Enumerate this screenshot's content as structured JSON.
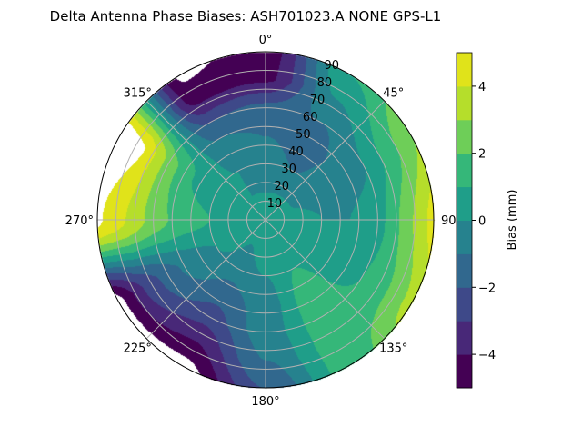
{
  "chart_data": {
    "type": "heatmap",
    "projection": "polar",
    "title": "Delta Antenna Phase Biases: ASH701023.A     NONE GPS-L1",
    "theta_zero": "top",
    "theta_direction": "clockwise",
    "theta_ticks": [
      "0°",
      "45°",
      "90°",
      "135°",
      "180°",
      "225°",
      "270°",
      "315°"
    ],
    "r_ticks": [
      "10",
      "20",
      "30",
      "40",
      "50",
      "60",
      "70",
      "80",
      "90"
    ],
    "r_range": [
      0,
      90
    ],
    "grid": true,
    "colormap": "viridis",
    "levels": [
      -5,
      -4,
      -3,
      -2,
      -1,
      0,
      1,
      2,
      3,
      4,
      5
    ],
    "level_colors": [
      "#440154",
      "#482878",
      "#3e4989",
      "#31688e",
      "#26828e",
      "#1f9e89",
      "#35b779",
      "#6ece58",
      "#b5de2b",
      "#e0e31a"
    ],
    "out_of_range_color": "#ffffff",
    "colorbar": {
      "label": "Bias (mm)",
      "ticks": [
        "−4",
        "−2",
        "0",
        "2",
        "4"
      ],
      "tick_values": [
        -4,
        -2,
        0,
        2,
        4
      ],
      "range": [
        -5,
        5
      ]
    },
    "grid_azimuths": [
      0,
      30,
      60,
      90,
      120,
      150,
      180,
      210,
      240,
      270,
      300,
      330
    ],
    "grid_zeniths": [
      0,
      15,
      30,
      45,
      60,
      75,
      90
    ],
    "values": [
      [
        0.5,
        0,
        -0.5,
        -1,
        -1.5,
        -4.2,
        -4.5
      ],
      [
        0.5,
        0,
        -1,
        -1.5,
        -1,
        0,
        1
      ],
      [
        0.5,
        0,
        -0.5,
        -0.5,
        0,
        1.5,
        3
      ],
      [
        0.5,
        0.5,
        0,
        0,
        0.5,
        2.5,
        4.5
      ],
      [
        0.5,
        0.5,
        0.5,
        0.5,
        1,
        2,
        3.5
      ],
      [
        0.5,
        0.5,
        1,
        1.5,
        1.5,
        1.5,
        1.5
      ],
      [
        0.5,
        0.5,
        0,
        -0.5,
        -0.5,
        -1,
        -2
      ],
      [
        0.5,
        0,
        -0.5,
        -1.5,
        -2.5,
        -4,
        -5.5
      ],
      [
        0.5,
        0.5,
        0,
        -0.5,
        -1.5,
        -3,
        -5.5
      ],
      [
        0.5,
        0.5,
        1,
        1.5,
        2.5,
        4,
        5.2
      ],
      [
        0.5,
        0.5,
        0.5,
        1,
        2.5,
        5,
        6
      ],
      [
        0.5,
        0,
        0,
        -0.5,
        -2,
        -4.5,
        -5.2
      ]
    ]
  }
}
